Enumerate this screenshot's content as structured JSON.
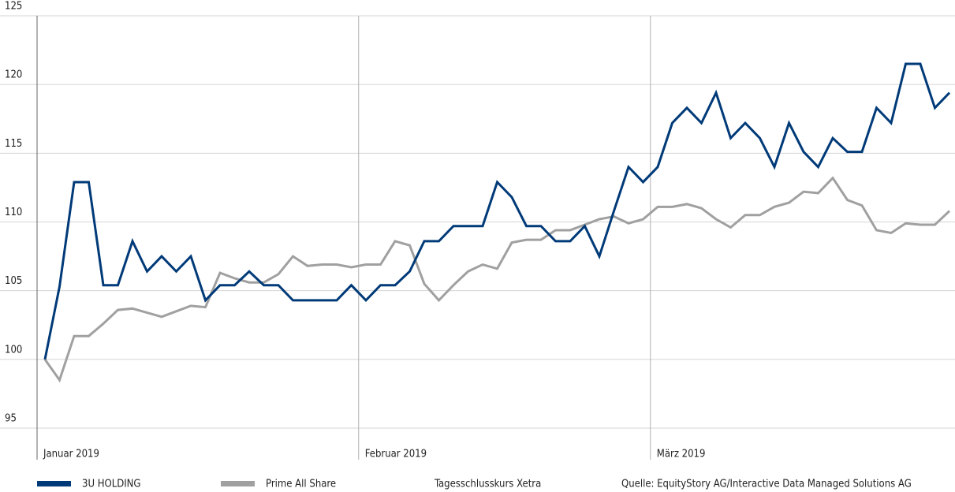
{
  "chart_data": {
    "type": "line",
    "categories": [
      "Januar 2019",
      null,
      null,
      null,
      null,
      null,
      null,
      null,
      null,
      null,
      null,
      null,
      null,
      null,
      null,
      null,
      null,
      null,
      null,
      null,
      null,
      null,
      "Februar 2019",
      null,
      null,
      null,
      null,
      null,
      null,
      null,
      null,
      null,
      null,
      null,
      null,
      null,
      null,
      null,
      null,
      null,
      null,
      null,
      "März 2019",
      null,
      null,
      null,
      null,
      null,
      null,
      null,
      null,
      null,
      null,
      null,
      null,
      null,
      null,
      null,
      null,
      null,
      null,
      null,
      null
    ],
    "series": [
      {
        "name": "3U HOLDING",
        "color": "#003a78",
        "values": [
          100,
          105.3,
          112.9,
          112.9,
          105.4,
          105.4,
          108.6,
          106.4,
          107.5,
          106.4,
          107.5,
          104.3,
          105.4,
          105.4,
          106.4,
          105.4,
          105.4,
          104.3,
          104.3,
          104.3,
          104.3,
          105.4,
          104.3,
          105.4,
          105.4,
          106.4,
          108.6,
          108.6,
          109.7,
          109.7,
          109.7,
          112.9,
          111.8,
          109.7,
          109.7,
          108.6,
          108.6,
          109.7,
          107.5,
          110.8,
          114.0,
          112.9,
          114.0,
          117.2,
          118.3,
          117.2,
          119.4,
          116.1,
          117.2,
          116.1,
          114.0,
          117.2,
          115.1,
          114.0,
          116.1,
          115.1,
          115.1,
          118.3,
          117.2,
          121.5,
          121.5,
          118.3,
          119.4
        ]
      },
      {
        "name": "Prime All Share",
        "color": "#a0a0a0",
        "values": [
          100,
          98.5,
          101.7,
          101.7,
          102.6,
          103.6,
          103.7,
          103.4,
          103.1,
          103.5,
          103.9,
          103.8,
          106.3,
          105.9,
          105.6,
          105.6,
          106.2,
          107.5,
          106.8,
          106.9,
          106.9,
          106.7,
          106.9,
          106.9,
          108.6,
          108.3,
          105.5,
          104.3,
          105.4,
          106.4,
          106.9,
          106.6,
          108.5,
          108.7,
          108.7,
          109.4,
          109.4,
          109.8,
          110.2,
          110.4,
          109.9,
          110.2,
          111.1,
          111.1,
          111.3,
          111.0,
          110.2,
          109.6,
          110.5,
          110.5,
          111.1,
          111.4,
          112.2,
          112.1,
          113.2,
          111.6,
          111.2,
          109.4,
          109.2,
          109.9,
          109.8,
          109.8,
          110.8
        ]
      }
    ],
    "ylim": [
      95,
      125
    ],
    "yticks": [
      95,
      100,
      105,
      110,
      115,
      120,
      125
    ],
    "grid": true,
    "note": "Tagesschlusskurs Xetra",
    "source": "Quelle: EquityStory AG/Interactive Data Managed Solutions AG"
  }
}
